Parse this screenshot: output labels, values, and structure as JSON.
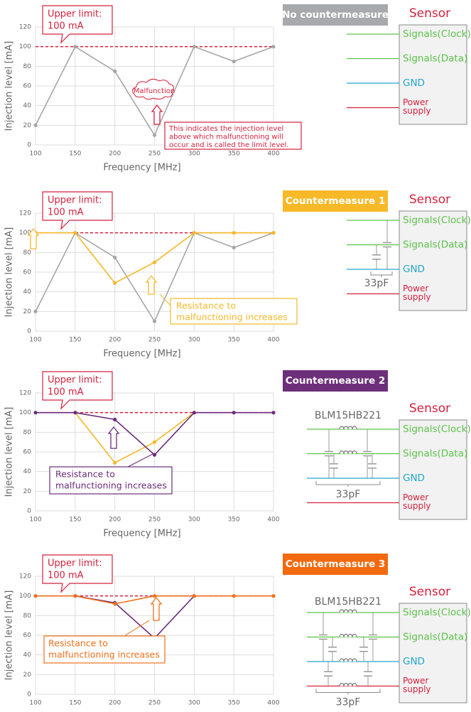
{
  "chart_data": [
    {
      "type": "line",
      "title": "No countermeasure",
      "badge_color": "#a7a9ac",
      "xlabel": "Frequency  [MHz]",
      "ylabel": "Injection level [mA]",
      "x": [
        100,
        150,
        200,
        250,
        300,
        350,
        400
      ],
      "xlim": [
        100,
        400
      ],
      "xticks": [
        100,
        150,
        200,
        250,
        300,
        350,
        400
      ],
      "ylim": [
        0,
        120
      ],
      "yticks": [
        0,
        20,
        40,
        60,
        80,
        100,
        120
      ],
      "grid": true,
      "limit": 100,
      "limit_color": "#d4213d",
      "callout": [
        "Upper limit:",
        "100 mA"
      ],
      "series": [
        {
          "color": "#a6a6a6",
          "values": [
            20,
            100,
            75,
            10,
            100,
            85,
            100
          ]
        }
      ],
      "marker_text": "Malfunction",
      "note": [
        "This indicates the injection level",
        "above which malfunctioning will",
        "occur and is called the limit level."
      ],
      "note_color": "#d4213d",
      "diagram": {
        "title": "Sensor",
        "pins": [
          [
            "Signals(Clock)"
          ],
          [
            "Signals(Data)"
          ],
          [
            "GND"
          ],
          [
            "Power",
            "supply"
          ]
        ]
      }
    },
    {
      "type": "line",
      "title": "Countermeasure 1",
      "badge_color": "#f7b928",
      "xlabel": "Frequency  [MHz]",
      "ylabel": "Injection level [mA]",
      "x": [
        100,
        150,
        200,
        250,
        300,
        350,
        400
      ],
      "xlim": [
        100,
        400
      ],
      "xticks": [
        100,
        150,
        200,
        250,
        300,
        350,
        400
      ],
      "ylim": [
        0,
        120
      ],
      "yticks": [
        0,
        20,
        40,
        60,
        80,
        100,
        120
      ],
      "grid": true,
      "limit": 100,
      "limit_color": "#d4213d",
      "callout": [
        "Upper limit:",
        "100 mA"
      ],
      "series": [
        {
          "color": "#a6a6a6",
          "values": [
            20,
            100,
            75,
            10,
            100,
            85,
            100
          ]
        },
        {
          "color": "#f5b82a",
          "values": [
            100,
            100,
            49,
            70,
            100,
            100,
            100
          ]
        }
      ],
      "note": [
        "Resistance to",
        "malfunctioning increases"
      ],
      "note_color": "#f5b82a",
      "diagram": {
        "title": "Sensor",
        "pins": [
          [
            "Signals(Clock)"
          ],
          [
            "Signals(Data)"
          ],
          [
            "GND"
          ],
          [
            "Power",
            "supply"
          ]
        ],
        "capacitance": "33pF"
      }
    },
    {
      "type": "line",
      "title": "Countermeasure 2",
      "badge_color": "#6d2e7a",
      "xlabel": "Frequency  [MHz]",
      "ylabel": "Injection level [mA]",
      "x": [
        100,
        150,
        200,
        250,
        300,
        350,
        400
      ],
      "xlim": [
        100,
        400
      ],
      "xticks": [
        100,
        150,
        200,
        250,
        300,
        350,
        400
      ],
      "ylim": [
        0,
        120
      ],
      "yticks": [
        0,
        20,
        40,
        60,
        80,
        100,
        120
      ],
      "grid": true,
      "limit": 100,
      "limit_color": "#d4213d",
      "callout": [
        "Upper limit:",
        "100 mA"
      ],
      "series": [
        {
          "color": "#f5b82a",
          "values": [
            null,
            100,
            49,
            70,
            100,
            null,
            null
          ]
        },
        {
          "color": "#6b2d7b",
          "values": [
            100,
            100,
            93,
            57,
            100,
            100,
            100
          ]
        }
      ],
      "note": [
        "Resistance to",
        "malfunctioning increases"
      ],
      "note_color": "#6b2d7b",
      "diagram": {
        "title": "Sensor",
        "pins": [
          [
            "Signals(Clock)"
          ],
          [
            "Signals(Data)"
          ],
          [
            "GND"
          ],
          [
            "Power",
            "supply"
          ]
        ],
        "part": "BLM15HB221",
        "capacitance": "33pF"
      }
    },
    {
      "type": "line",
      "title": "Countermeasure 3",
      "badge_color": "#f26a10",
      "ylabel": "Injection level [mA]",
      "x": [
        100,
        150,
        200,
        250,
        300,
        350,
        400
      ],
      "xlim": [
        100,
        400
      ],
      "xticks": [
        100,
        150,
        200,
        250,
        300,
        350,
        400
      ],
      "ylim": [
        0,
        120
      ],
      "yticks": [
        0,
        20,
        40,
        60,
        80,
        100,
        120
      ],
      "grid": true,
      "limit": 100,
      "limit_color": "#d4213d",
      "callout": [
        "Upper limit:",
        "100 mA"
      ],
      "series": [
        {
          "color": "#6b2d7b",
          "values": [
            null,
            100,
            93,
            57,
            100,
            null,
            null
          ]
        },
        {
          "color": "#f0701a",
          "values": [
            100,
            100,
            92,
            100,
            100,
            100,
            100
          ]
        }
      ],
      "note": [
        "Resistance to",
        "malfunctioning increases"
      ],
      "note_color": "#f0701a",
      "diagram": {
        "title": "Sensor",
        "pins": [
          [
            "Signals(Clock)"
          ],
          [
            "Signals(Data)"
          ],
          [
            "GND"
          ],
          [
            "Power",
            "supply"
          ]
        ],
        "part": "BLM15HB221",
        "capacitance": "33pF"
      }
    }
  ]
}
